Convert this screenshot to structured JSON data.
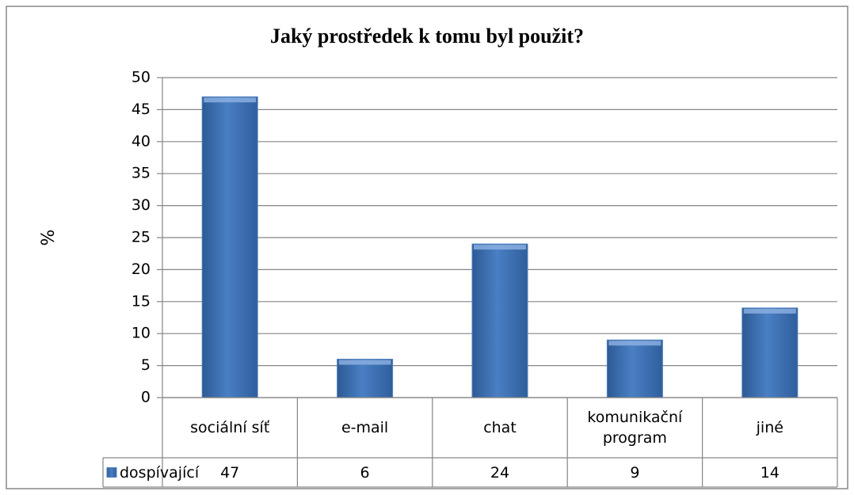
{
  "chart_data": {
    "type": "bar",
    "title": "Jaký prostředek k tomu byl použit?",
    "y_label": "%",
    "categories": [
      "sociální síť",
      "e-mail",
      "chat",
      "komunikační program",
      "jiné"
    ],
    "series": [
      {
        "name": "dospívající",
        "color": "#4f81bd",
        "values": [
          47,
          6,
          24,
          9,
          14
        ]
      }
    ],
    "ylim": [
      0,
      50
    ],
    "yticks": [
      0,
      5,
      10,
      15,
      20,
      25,
      30,
      35,
      40,
      45,
      50
    ],
    "grid": true,
    "data_table": true
  }
}
